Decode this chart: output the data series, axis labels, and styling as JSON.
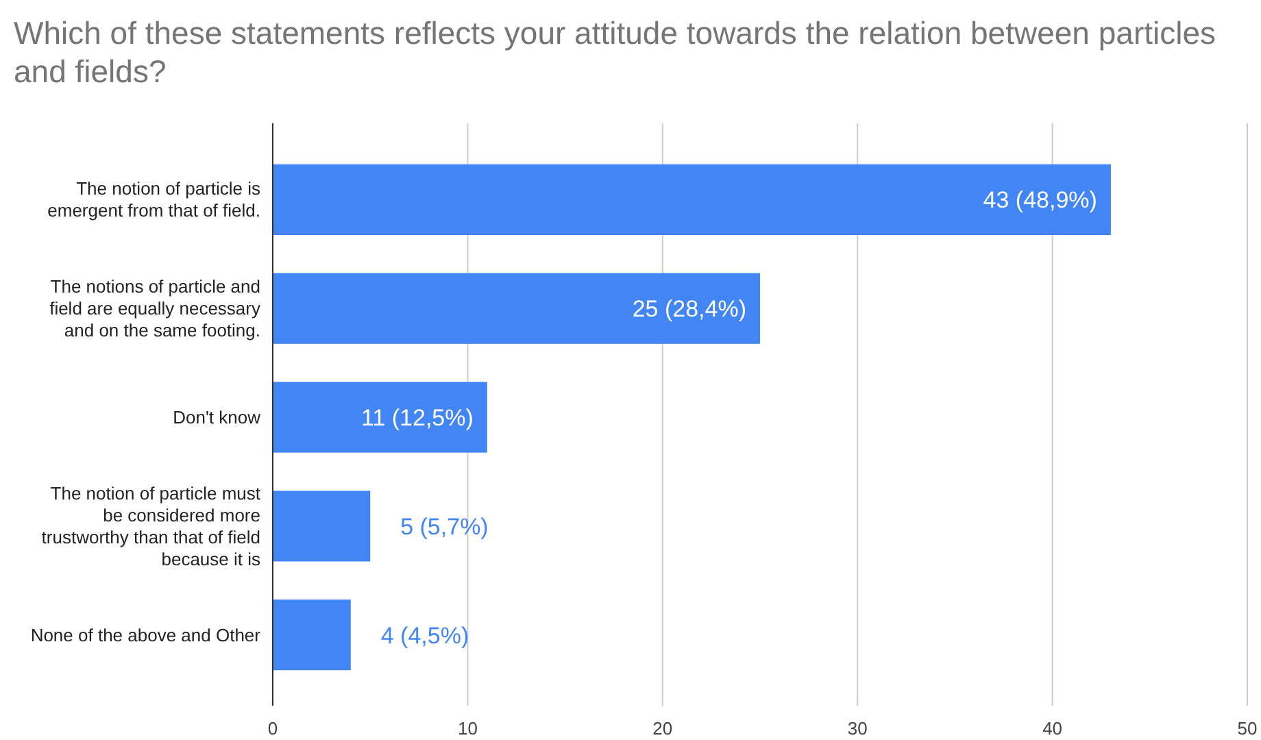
{
  "chart_data": {
    "type": "bar",
    "orientation": "horizontal",
    "title": "Which of these statements reflects your attitude towards the relation between particles and fields?",
    "categories": [
      "The notion of particle is emergent from that of field.",
      "The notions of particle and field are equally necessary and on the same footing.",
      "Don't know",
      "The notion of particle must be considered more trustworthy than that of field because it is",
      "None of the above and Other"
    ],
    "values": [
      43,
      25,
      11,
      5,
      4
    ],
    "value_labels": [
      "43 (48,9%)",
      "25 (28,4%)",
      "11 (12,5%)",
      "5 (5,7%)",
      "4 (4,5%)"
    ],
    "color": "#4285f4",
    "xlim": [
      0,
      50
    ],
    "xticks": [
      0,
      10,
      20,
      30,
      40,
      50
    ],
    "grid": "x"
  }
}
